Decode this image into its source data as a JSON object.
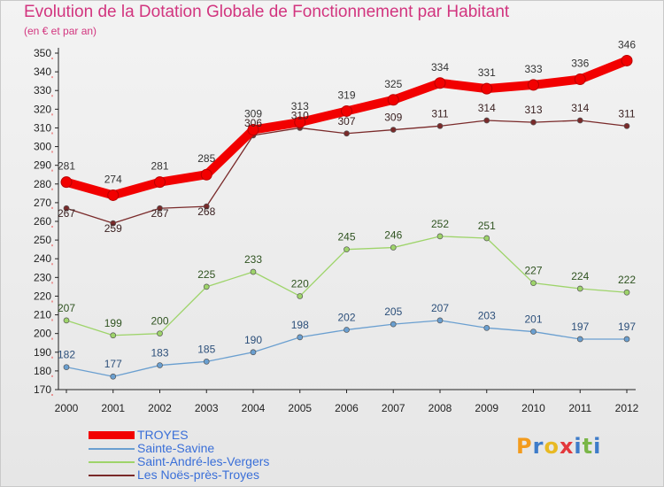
{
  "title": "Evolution de la Dotation Globale de Fonctionnement par Habitant",
  "subtitle": "(en € et par an)",
  "logo": {
    "text": [
      "P",
      "r",
      "o",
      "x",
      "i",
      "t",
      "i"
    ],
    "colors": [
      "#f39b1d",
      "#3e7cc9",
      "#e8b923",
      "#e3383c",
      "#3e7cc9",
      "#7ab648",
      "#3e7cc9"
    ]
  },
  "chart_data": {
    "type": "line",
    "x": [
      "2000",
      "2001",
      "2002",
      "2003",
      "2004",
      "2005",
      "2006",
      "2007",
      "2008",
      "2009",
      "2010",
      "2011",
      "2012"
    ],
    "ylim": [
      170,
      350
    ],
    "yticks": [
      170,
      180,
      190,
      200,
      210,
      220,
      230,
      240,
      250,
      260,
      270,
      280,
      290,
      300,
      310,
      320,
      330,
      340,
      350
    ],
    "grid": false,
    "legend_position": "bottom-left",
    "series": [
      {
        "name": "TROYES",
        "color": "#f20000",
        "emphasis": true,
        "values": [
          281,
          274,
          281,
          285,
          309,
          313,
          319,
          325,
          334,
          331,
          333,
          336,
          346
        ]
      },
      {
        "name": "Sainte-Savine",
        "color": "#6a9fd0",
        "values": [
          182,
          177,
          183,
          185,
          190,
          198,
          202,
          205,
          207,
          203,
          201,
          197,
          197
        ]
      },
      {
        "name": "Saint-André-les-Vergers",
        "color": "#9ed46a",
        "values": [
          207,
          199,
          200,
          225,
          233,
          220,
          245,
          246,
          252,
          251,
          227,
          224,
          222
        ]
      },
      {
        "name": "Les Noës-près-Troyes",
        "color": "#7a2a2a",
        "values": [
          267,
          259,
          267,
          268,
          306,
          310,
          307,
          309,
          311,
          314,
          313,
          314,
          311
        ]
      }
    ]
  }
}
